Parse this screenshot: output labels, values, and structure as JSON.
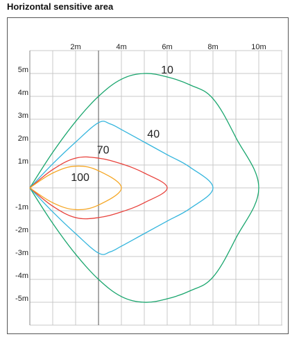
{
  "title": "Horizontal sensitive area",
  "chart_data": {
    "type": "line",
    "title": "Horizontal sensitive area",
    "xlabel": "",
    "ylabel": "",
    "xlim": [
      0,
      10
    ],
    "ylim": [
      -5,
      5
    ],
    "grid": true,
    "x_ticks": [
      {
        "value": 2,
        "label": "2m"
      },
      {
        "value": 4,
        "label": "4m"
      },
      {
        "value": 6,
        "label": "6m"
      },
      {
        "value": 8,
        "label": "8m"
      },
      {
        "value": 10,
        "label": "10m"
      }
    ],
    "y_ticks": [
      {
        "value": 5,
        "label": "5m"
      },
      {
        "value": 4,
        "label": "4m"
      },
      {
        "value": 3,
        "label": "3m"
      },
      {
        "value": 2,
        "label": "2m"
      },
      {
        "value": 1,
        "label": "1m"
      },
      {
        "value": -1,
        "label": "-1m"
      },
      {
        "value": -2,
        "label": "-2m"
      },
      {
        "value": -3,
        "label": "-3m"
      },
      {
        "value": -4,
        "label": "-4m"
      },
      {
        "value": -5,
        "label": "-5m"
      }
    ],
    "series": [
      {
        "name": "10",
        "color": "#1aa66e",
        "label_at": [
          6.0,
          5.0
        ],
        "points": [
          [
            0,
            0
          ],
          [
            1,
            1.55
          ],
          [
            2,
            2.9
          ],
          [
            3,
            4.0
          ],
          [
            4,
            4.75
          ],
          [
            5,
            5.0
          ],
          [
            6,
            4.85
          ],
          [
            7,
            4.5
          ],
          [
            8,
            3.9
          ],
          [
            9,
            2.2
          ],
          [
            10,
            0
          ],
          [
            9,
            -2.2
          ],
          [
            8,
            -3.9
          ],
          [
            7,
            -4.5
          ],
          [
            6,
            -4.85
          ],
          [
            5,
            -5.0
          ],
          [
            4,
            -4.75
          ],
          [
            3,
            -4.0
          ],
          [
            2,
            -2.9
          ],
          [
            1,
            -1.55
          ],
          [
            0,
            0
          ]
        ]
      },
      {
        "name": "40",
        "color": "#33b5dd",
        "label_at": [
          5.4,
          2.2
        ],
        "points": [
          [
            0,
            0
          ],
          [
            1,
            1.05
          ],
          [
            2,
            2.0
          ],
          [
            3,
            2.85
          ],
          [
            3.5,
            2.8
          ],
          [
            4,
            2.55
          ],
          [
            5,
            2.0
          ],
          [
            6,
            1.45
          ],
          [
            7,
            0.9
          ],
          [
            8,
            0
          ],
          [
            7,
            -0.9
          ],
          [
            6,
            -1.45
          ],
          [
            5,
            -2.0
          ],
          [
            4,
            -2.55
          ],
          [
            3.5,
            -2.8
          ],
          [
            3,
            -2.85
          ],
          [
            2,
            -2.0
          ],
          [
            1,
            -1.05
          ],
          [
            0,
            0
          ]
        ]
      },
      {
        "name": "70",
        "color": "#e8403a",
        "label_at": [
          3.2,
          1.5
        ],
        "points": [
          [
            0,
            0
          ],
          [
            1,
            0.8
          ],
          [
            2,
            1.3
          ],
          [
            3,
            1.3
          ],
          [
            4,
            1.05
          ],
          [
            5,
            0.65
          ],
          [
            6,
            0
          ],
          [
            5,
            -0.65
          ],
          [
            4,
            -1.05
          ],
          [
            3,
            -1.3
          ],
          [
            2,
            -1.3
          ],
          [
            1,
            -0.8
          ],
          [
            0,
            0
          ]
        ]
      },
      {
        "name": "100",
        "color": "#f5a623",
        "label_at": [
          2.2,
          0.3
        ],
        "points": [
          [
            0,
            0
          ],
          [
            1,
            0.65
          ],
          [
            2,
            0.95
          ],
          [
            3,
            0.75
          ],
          [
            4,
            0
          ],
          [
            3,
            -0.75
          ],
          [
            2,
            -0.95
          ],
          [
            1,
            -0.65
          ],
          [
            0,
            0
          ]
        ]
      }
    ]
  }
}
